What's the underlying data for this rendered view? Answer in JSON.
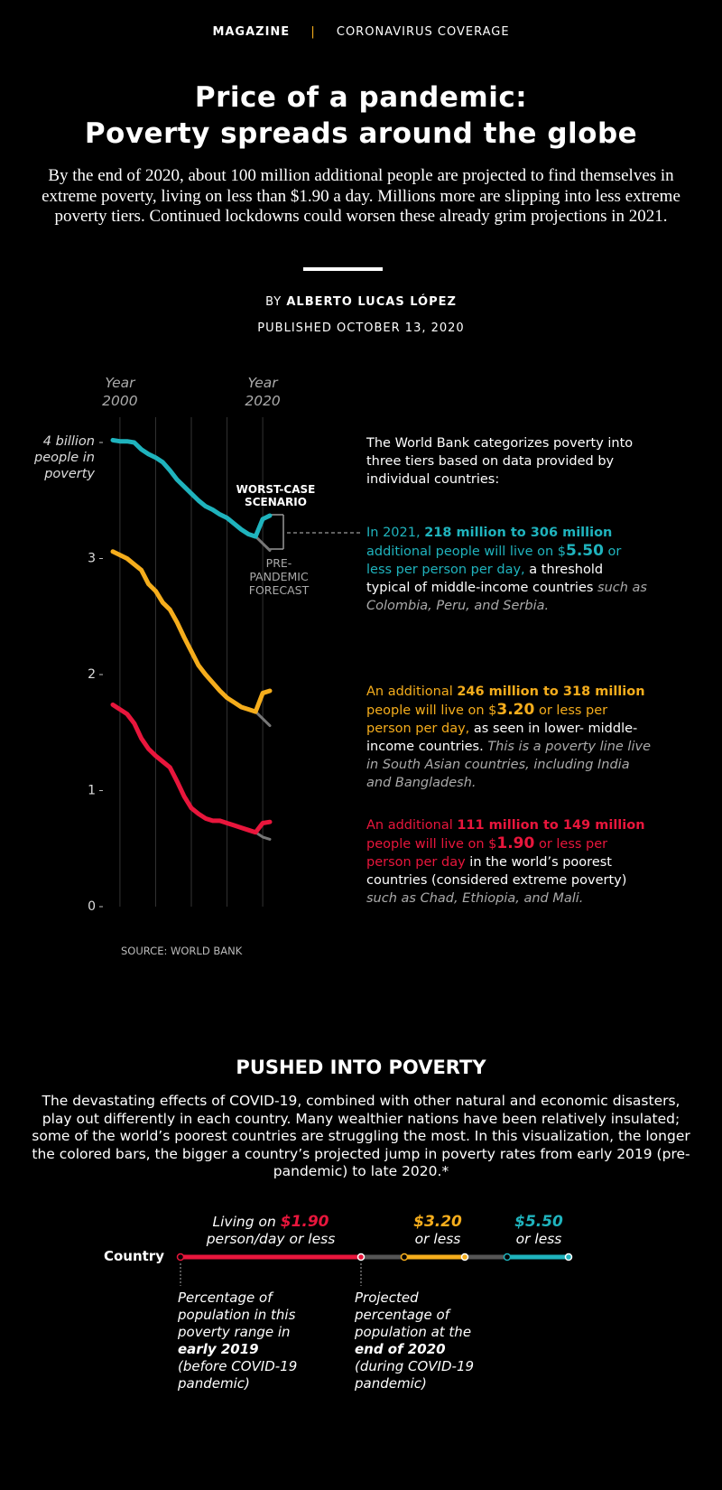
{
  "header": {
    "section": "MAGAZINE",
    "topic": "CORONAVIRUS COVERAGE",
    "title": [
      "Price of a pandemic:",
      "Poverty spreads around the globe"
    ],
    "dek": "By the end of 2020, about 100 million additional people are projected to find themselves in extreme poverty, living on less than $1.90 a day. Millions more are slipping into less extreme poverty tiers. Continued lockdowns could worsen these already grim projections in 2021.",
    "byline": [
      "BY ",
      "ALBERTO LUCAS LÓPEZ"
    ],
    "published": "PUBLISHED OCTOBER 13, 2020"
  },
  "chart_data": {
    "type": "line",
    "x": [
      1999,
      2000,
      2001,
      2002,
      2003,
      2004,
      2005,
      2006,
      2007,
      2008,
      2009,
      2010,
      2011,
      2012,
      2013,
      2014,
      2015,
      2016,
      2017,
      2018,
      2019,
      2020,
      2021
    ],
    "xlim": [
      1999,
      2021
    ],
    "xticks": [
      2000,
      2005,
      2010,
      2015,
      2020
    ],
    "xtick_labels": [
      {
        "value": 2000,
        "label": "Year 2000"
      },
      {
        "value": 2020,
        "label": "Year 2020"
      }
    ],
    "ylim": [
      0,
      4
    ],
    "yticks": [
      0,
      1,
      2,
      3,
      {
        "value": 4,
        "label": "4 billion people in poverty"
      }
    ],
    "grid": true,
    "series": [
      {
        "color": "#777777",
        "values": [
          null,
          null,
          null,
          null,
          null,
          null,
          null,
          null,
          null,
          null,
          null,
          null,
          null,
          null,
          null,
          null,
          null,
          null,
          null,
          null,
          3.19,
          3.13,
          3.07
        ]
      },
      {
        "color": "#777777",
        "values": [
          null,
          null,
          null,
          null,
          null,
          null,
          null,
          null,
          null,
          null,
          null,
          null,
          null,
          null,
          null,
          null,
          null,
          null,
          null,
          null,
          1.68,
          1.62,
          1.56
        ]
      },
      {
        "color": "#777777",
        "values": [
          null,
          null,
          null,
          null,
          null,
          null,
          null,
          null,
          null,
          null,
          null,
          null,
          null,
          null,
          null,
          null,
          null,
          null,
          null,
          null,
          0.64,
          0.6,
          0.58
        ]
      },
      {
        "color": "#1fb3bd",
        "values": [
          4.02,
          4.01,
          4.01,
          4.0,
          3.94,
          3.9,
          3.87,
          3.83,
          3.76,
          3.68,
          3.62,
          3.56,
          3.5,
          3.45,
          3.42,
          3.38,
          3.35,
          3.3,
          3.25,
          3.21,
          3.19,
          3.34,
          3.37
        ]
      },
      {
        "color": "#f5ad1c",
        "values": [
          3.06,
          3.03,
          3.0,
          2.95,
          2.9,
          2.78,
          2.72,
          2.62,
          2.56,
          2.45,
          2.32,
          2.2,
          2.08,
          2.0,
          1.93,
          1.86,
          1.8,
          1.76,
          1.72,
          1.7,
          1.68,
          1.84,
          1.86
        ]
      },
      {
        "color": "#e8163c",
        "values": [
          1.74,
          1.7,
          1.66,
          1.58,
          1.45,
          1.36,
          1.3,
          1.25,
          1.2,
          1.08,
          0.95,
          0.85,
          0.8,
          0.76,
          0.74,
          0.74,
          0.72,
          0.7,
          0.68,
          0.66,
          0.64,
          0.72,
          0.73
        ]
      }
    ],
    "annotations": {
      "worst": "WORST-CASE SCENARIO",
      "forecast": "PRE-PANDEMIC FORECAST"
    },
    "source": "SOURCE: WORLD BANK"
  },
  "notes": [
    [
      "The World Bank categorizes poverty into three tiers based on data provided by individual countries:"
    ],
    [
      "In 2021, ",
      "218 million to 306 million",
      " additional people will live on $",
      "5.50",
      " or less per person per day,",
      " a threshold typical of middle-income countries ",
      "such as Colombia, Peru, and Serbia."
    ],
    [
      "An additional ",
      "246 million to 318 million",
      " people will live on $",
      "3.20",
      " or less per person per day,",
      " as seen in lower- middle-income countries. ",
      "This is a poverty line live in South Asian countries, including India and Bangladesh."
    ],
    [
      "An additional ",
      "111 million to 149 million",
      " people will live on $",
      "1.90",
      " or less per person per day",
      " in the world’s poorest countries (considered extreme poverty) ",
      "such as Chad, Ethiopia, and Mali."
    ]
  ],
  "section2": {
    "title": "PUSHED INTO POVERTY",
    "text": "The devastating effects of COVID-19, combined with other natural and economic disasters, play out differently in each country. Many wealthier nations have been relatively insulated; some of the world’s poorest countries are struggling the most. In this visualization, the longer the colored bars, the bigger a country’s projected jump in poverty rates from early 2019 (pre-pandemic) to late 2020.*",
    "legend": {
      "country": "Country",
      "tier1": [
        "Living on ",
        "$1.90",
        "person/day or less"
      ],
      "tier2": [
        "$3.20",
        "or less"
      ],
      "tier3": [
        "$5.50",
        "or less"
      ],
      "start": [
        "Percentage of population in this poverty range in ",
        "early 2019",
        " (before COVID-19 pandemic)"
      ],
      "end": [
        "Projected percentage of population at the ",
        "end of 2020",
        " (during COVID-19 pandemic)"
      ]
    }
  }
}
